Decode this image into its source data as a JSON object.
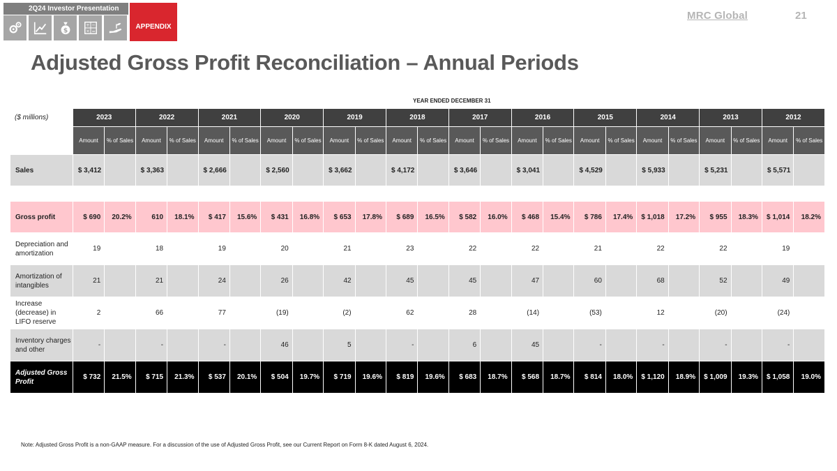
{
  "nav": {
    "title": "2Q24  Investor Presentation",
    "tab": "APPENDIX",
    "icons": [
      "gears-icon",
      "growth-chart-icon",
      "money-bag-icon",
      "math-symbols-icon",
      "hand-plant-icon"
    ]
  },
  "header": {
    "brand": "MRC Global",
    "page_number": "21"
  },
  "title": "Adjusted Gross Profit Reconciliation – Annual Periods",
  "table": {
    "caption": "YEAR ENDED DECEMBER 31",
    "units_label": "($ millions)",
    "amount_header": "Amount",
    "pct_header": "% of Sales",
    "years": [
      "2023",
      "2022",
      "2021",
      "2020",
      "2019",
      "2018",
      "2017",
      "2016",
      "2015",
      "2014",
      "2013",
      "2012"
    ],
    "sales": {
      "label": "Sales",
      "amounts": [
        "$ 3,412",
        "$ 3,363",
        "$ 2,666",
        "$ 2,560",
        "$ 3,662",
        "$ 4,172",
        "$ 3,646",
        "$ 3,041",
        "$ 4,529",
        "$ 5,933",
        "$ 5,231",
        "$ 5,571"
      ]
    },
    "rows": [
      {
        "key": "gross-profit",
        "style": "gross",
        "label": "Gross profit",
        "amounts": [
          "$ 690",
          "610",
          "$ 417",
          "$ 431",
          "$ 653",
          "$ 689",
          "$ 582",
          "$ 468",
          "$ 786",
          "$ 1,018",
          "$ 955",
          "$ 1,014"
        ],
        "pcts": [
          "20.2%",
          "18.1%",
          "15.6%",
          "16.8%",
          "17.8%",
          "16.5%",
          "16.0%",
          "15.4%",
          "17.4%",
          "17.2%",
          "18.3%",
          "18.2%"
        ]
      },
      {
        "key": "depreciation",
        "style": "plain",
        "label": "Depreciation and amortization",
        "amounts": [
          "19",
          "18",
          "19",
          "20",
          "21",
          "23",
          "22",
          "22",
          "21",
          "22",
          "22",
          "19"
        ],
        "pcts": [
          "",
          "",
          "",
          "",
          "",
          "",
          "",
          "",
          "",
          "",
          "",
          ""
        ]
      },
      {
        "key": "amortization",
        "style": "shade",
        "label": "Amortization of intangibles",
        "amounts": [
          "21",
          "21",
          "24",
          "26",
          "42",
          "45",
          "45",
          "47",
          "60",
          "68",
          "52",
          "49"
        ],
        "pcts": [
          "",
          "",
          "",
          "",
          "",
          "",
          "",
          "",
          "",
          "",
          "",
          ""
        ]
      },
      {
        "key": "lifo",
        "style": "plain",
        "label": "Increase (decrease) in LIFO reserve",
        "amounts": [
          "2",
          "66",
          "77",
          "(19)",
          "(2)",
          "62",
          "28",
          "(14)",
          "(53)",
          "12",
          "(20)",
          "(24)"
        ],
        "pcts": [
          "",
          "",
          "",
          "",
          "",
          "",
          "",
          "",
          "",
          "",
          "",
          ""
        ]
      },
      {
        "key": "inventory",
        "style": "shade",
        "label": "Inventory charges and other",
        "amounts": [
          "-",
          "-",
          "-",
          "46",
          "5",
          "-",
          "6",
          "45",
          "-",
          "-",
          "-",
          "-"
        ],
        "pcts": [
          "",
          "",
          "",
          "",
          "",
          "",
          "",
          "",
          "",
          "",
          "",
          ""
        ]
      },
      {
        "key": "adjusted",
        "style": "adj",
        "label": "Adjusted Gross Profit",
        "amounts": [
          "$ 732",
          "$ 715",
          "$ 537",
          "$ 504",
          "$ 719",
          "$ 819",
          "$ 683",
          "$ 568",
          "$ 814",
          "$ 1,120",
          "$ 1,009",
          "$ 1,058"
        ],
        "pcts": [
          "21.5%",
          "21.3%",
          "20.1%",
          "19.7%",
          "19.6%",
          "19.6%",
          "18.7%",
          "18.7%",
          "18.0%",
          "18.9%",
          "19.3%",
          "19.0%"
        ]
      }
    ]
  },
  "note": "Note: Adjusted Gross Profit is a non-GAAP measure. For a discussion of the use of Adjusted Gross Profit, see our Current Report on Form 8-K dated August 6, 2024."
}
